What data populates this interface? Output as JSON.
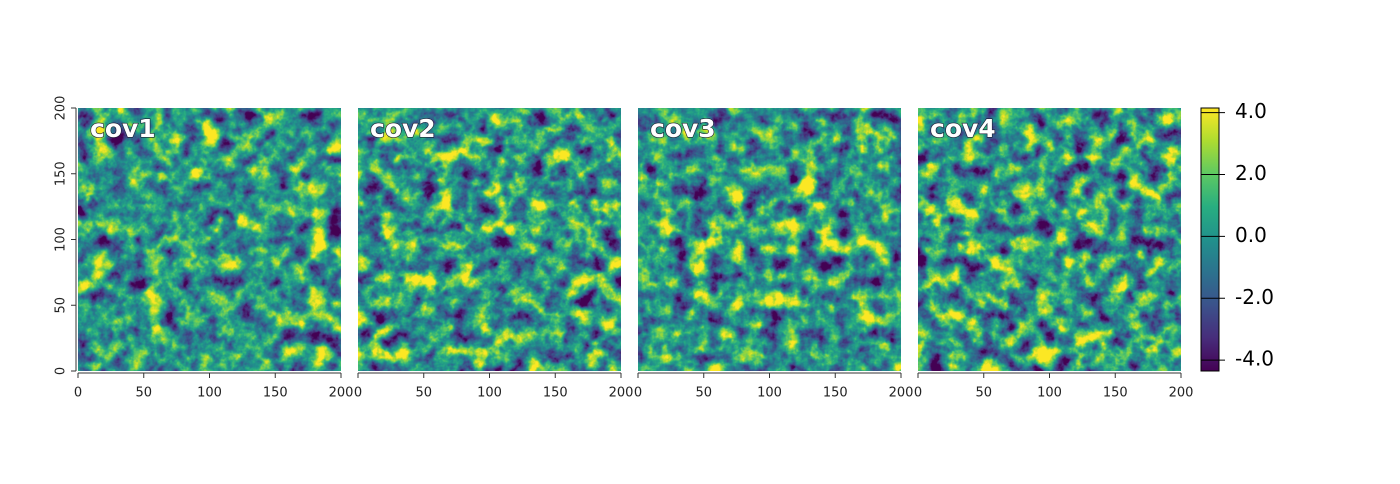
{
  "chart_data": [
    {
      "type": "raster",
      "title": "cov1",
      "xlim": [
        0,
        200
      ],
      "ylim": [
        0,
        200
      ],
      "xticks": [
        0,
        50,
        100,
        150,
        200
      ],
      "yticks": [
        0,
        50,
        100,
        150,
        200
      ]
    },
    {
      "type": "raster",
      "title": "cov2",
      "xlim": [
        0,
        200
      ],
      "ylim": [
        0,
        200
      ],
      "xticks": [
        0,
        50,
        100,
        150,
        200
      ]
    },
    {
      "type": "raster",
      "title": "cov3",
      "xlim": [
        0,
        200
      ],
      "ylim": [
        0,
        200
      ],
      "xticks": [
        0,
        50,
        100,
        150,
        200
      ]
    },
    {
      "type": "raster",
      "title": "cov4",
      "xlim": [
        0,
        200
      ],
      "ylim": [
        0,
        200
      ],
      "xticks": [
        0,
        50,
        100,
        150,
        200
      ]
    }
  ],
  "colorbar": {
    "lim": [
      -4.35,
      4.15
    ],
    "ticks": [
      {
        "value": 4,
        "label": "4.0"
      },
      {
        "value": 2,
        "label": "2.0"
      },
      {
        "value": 0,
        "label": "0.0"
      },
      {
        "value": -2,
        "label": "-2.0"
      },
      {
        "value": -4,
        "label": "-4.0"
      }
    ],
    "colors": [
      "#440154",
      "#472d7b",
      "#3b528b",
      "#2c728e",
      "#21918c",
      "#28ae80",
      "#5ec962",
      "#addc30",
      "#fde725"
    ]
  }
}
